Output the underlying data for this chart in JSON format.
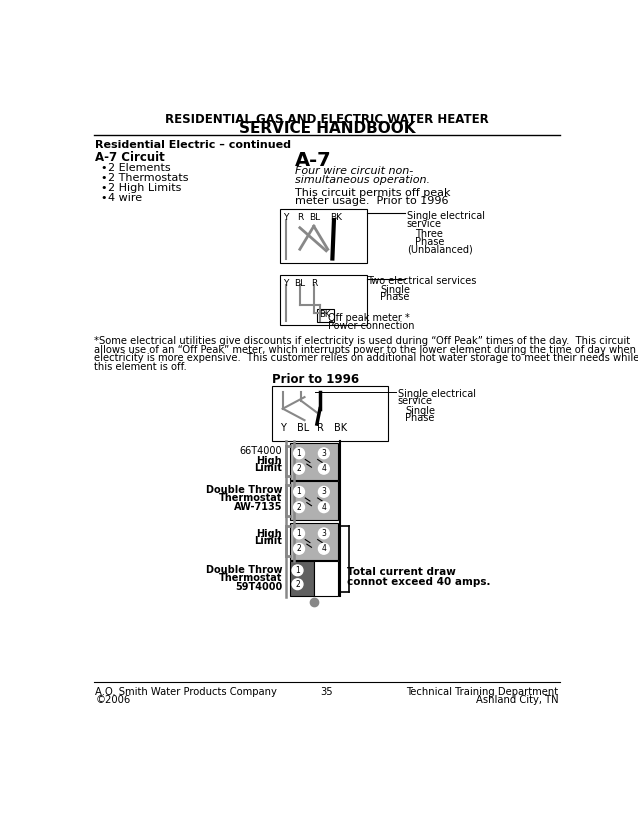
{
  "title_line1": "RESIDENTIAL GAS AND ELECTRIC WATER HEATER",
  "title_line2": "SERVICE HANDBOOK",
  "subtitle": "Residential Electric – continued",
  "section_title": "A-7 Circuit",
  "bullets": [
    "2 Elements",
    "2 Thermostats",
    "2 High Limits",
    "4 wire"
  ],
  "right_title": "A-7",
  "right_desc1": "Four wire circuit non-",
  "right_desc2": "simultaneous operation.",
  "right_desc3": "This circuit permits off peak",
  "right_desc4": "meter usage.  Prior to 1996",
  "diag1_label_right1": "Single electrical",
  "diag1_label_right2": "service",
  "diag1_label_right3": "Three",
  "diag1_label_right4": "Phase",
  "diag1_label_right5": "(Unbalanced)",
  "diag2_label_right1": "Two electrical services",
  "diag2_label_right2": "Single",
  "diag2_label_right3": "Phase",
  "diag2_label_right4": "Off peak meter *",
  "diag2_label_right5": "Power connection",
  "footnote1": "*Some electrical utilities give discounts if electricity is used during “Off Peak” times of the day.  This circuit",
  "footnote2": "allows use of an “Off Peak” meter, which interrupts power to the lower element during the time of day when",
  "footnote3": "electricity is more expensive.  This customer relies on additional hot water storage to meet their needs while",
  "footnote4": "this element is off.",
  "diag3_title": "Prior to 1996",
  "diag3_label1": "Single electrical",
  "diag3_label2": "service",
  "diag3_label3": "Single",
  "diag3_label4": "Phase",
  "comp1_name": "66T4000",
  "comp1_label1": "High",
  "comp1_label2": "Limit",
  "comp2_label1": "Double Throw",
  "comp2_label2": "Thermostat",
  "comp2_label3": "AW-7135",
  "comp3_label1": "High",
  "comp3_label2": "Limit",
  "comp4_label1": "Double Throw",
  "comp4_label2": "Thermostat",
  "comp4_label3": "59T4000",
  "total_current": "Total current draw",
  "total_current2": "connot exceed 40 amps.",
  "footer_left1": "A.O. Smith Water Products Company",
  "footer_left2": "©2006",
  "footer_center": "35",
  "footer_right1": "Technical Training Department",
  "footer_right2": "Ashland City, TN",
  "bg_color": "#ffffff",
  "text_color": "#000000"
}
